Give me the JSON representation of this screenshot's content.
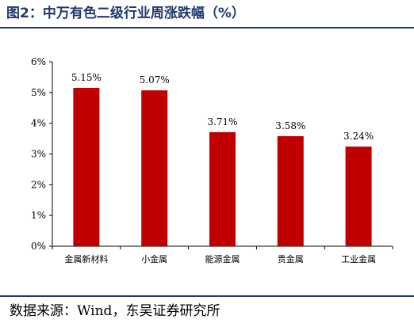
{
  "figure": {
    "title": "图2：中万有色二级行业周涨跌幅（%）",
    "source": "数据来源：Wind，东吴证券研究所"
  },
  "colors": {
    "bar": "#c00000",
    "accent": "#1f3a6e"
  },
  "chart_data": {
    "type": "bar",
    "categories": [
      "金属新材料",
      "小金属",
      "能源金属",
      "贵金属",
      "工业金属"
    ],
    "values": [
      5.15,
      5.07,
      3.71,
      3.58,
      3.24
    ],
    "value_labels": [
      "5.15%",
      "5.07%",
      "3.71%",
      "3.58%",
      "3.24%"
    ],
    "y_ticks": [
      0,
      1,
      2,
      3,
      4,
      5,
      6
    ],
    "y_tick_labels": [
      "0%",
      "1%",
      "2%",
      "3%",
      "4%",
      "5%",
      "6%"
    ],
    "ylim": [
      0,
      6
    ],
    "grid": false,
    "legend": "none"
  }
}
